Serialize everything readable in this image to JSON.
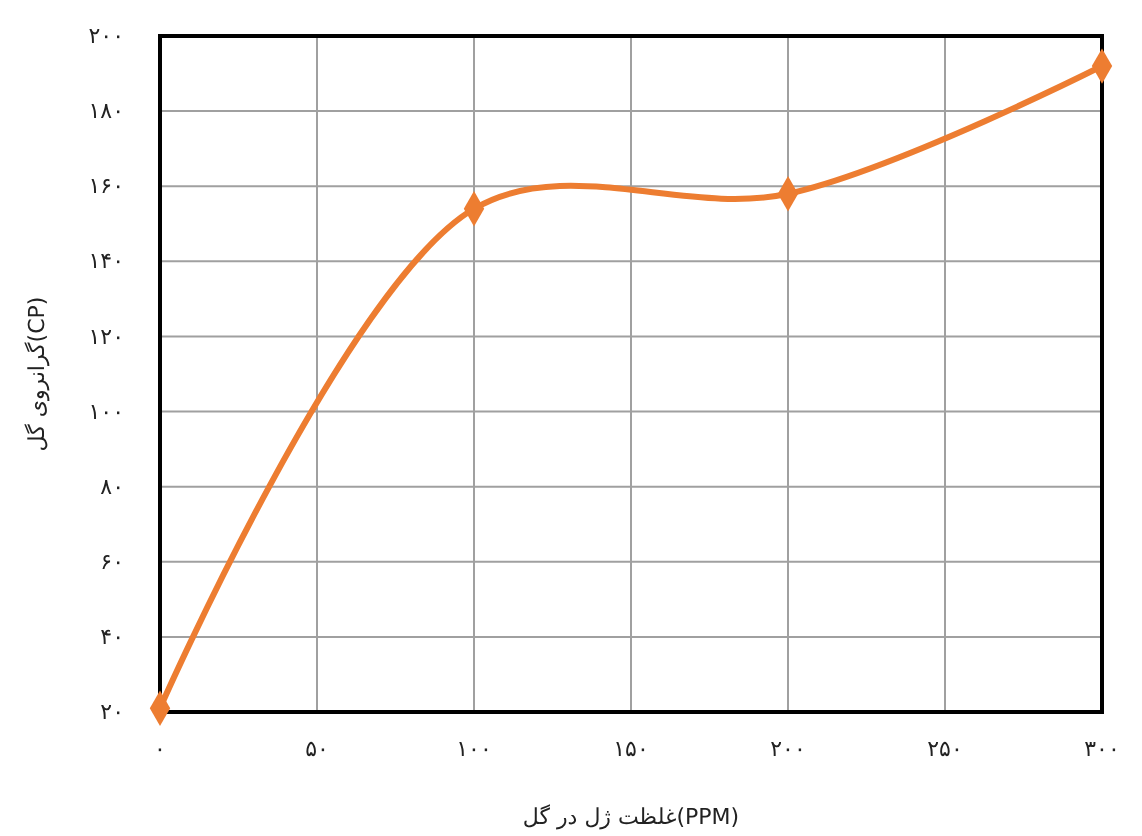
{
  "chart_data": {
    "type": "line",
    "xlabel": "غلظت ژل در گل(PPM)",
    "ylabel": "گرانروی گل(CP)",
    "x": [
      0,
      100,
      200,
      300
    ],
    "series": [
      {
        "color": "#ed7d31",
        "values": [
          21,
          154,
          158,
          192
        ]
      }
    ],
    "xlim": [
      0,
      300
    ],
    "ylim": [
      20,
      200
    ],
    "xticks": [
      {
        "value": 0,
        "label": "۰"
      },
      {
        "value": 50,
        "label": "۵۰"
      },
      {
        "value": 100,
        "label": "۱۰۰"
      },
      {
        "value": 150,
        "label": "۱۵۰"
      },
      {
        "value": 200,
        "label": "۲۰۰"
      },
      {
        "value": 250,
        "label": "۲۵۰"
      },
      {
        "value": 300,
        "label": "۳۰۰"
      }
    ],
    "yticks": [
      {
        "value": 20,
        "label": "۲۰"
      },
      {
        "value": 40,
        "label": "۴۰"
      },
      {
        "value": 60,
        "label": "۶۰"
      },
      {
        "value": 80,
        "label": "۸۰"
      },
      {
        "value": 100,
        "label": "۱۰۰"
      },
      {
        "value": 120,
        "label": "۱۲۰"
      },
      {
        "value": 140,
        "label": "۱۴۰"
      },
      {
        "value": 160,
        "label": "۱۶۰"
      },
      {
        "value": 180,
        "label": "۱۸۰"
      },
      {
        "value": 200,
        "label": "۲۰۰"
      }
    ],
    "grid": true,
    "marker": "diamond",
    "line_style": "solid"
  }
}
